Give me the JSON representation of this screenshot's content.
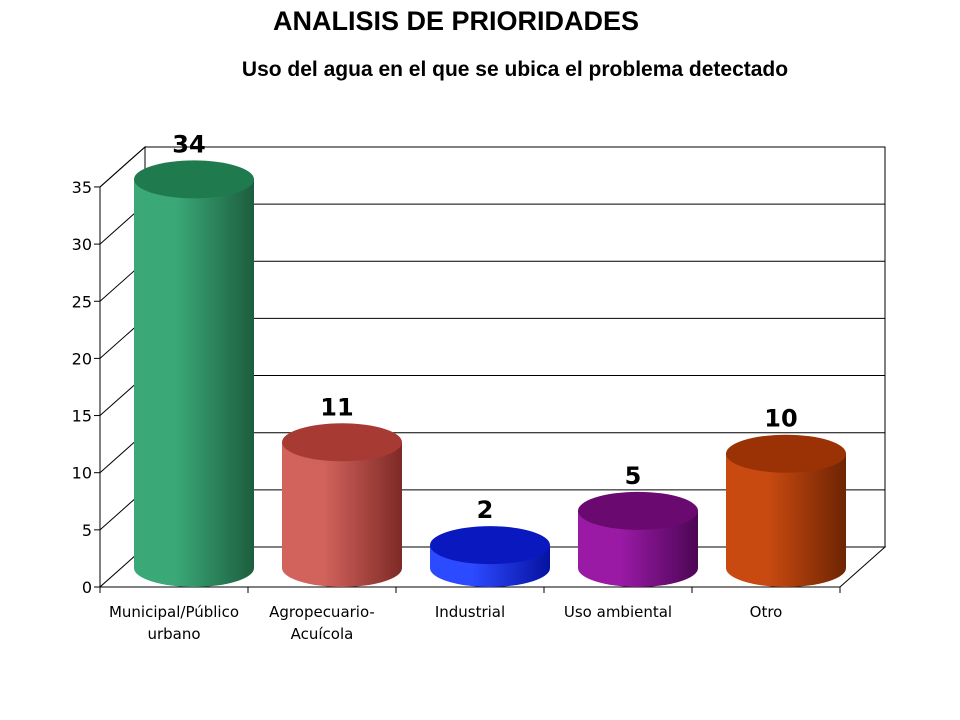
{
  "title": "ANALISIS DE PRIORIDADES",
  "subtitle": "Uso del agua en el que se ubica el problema detectado",
  "chart_data": {
    "type": "bar",
    "style": "3d-cylinder",
    "categories": [
      "Municipal/Público urbano",
      "Agropecuario-Acuícola",
      "Industrial",
      "Uso ambiental",
      "Otro"
    ],
    "category_label_lines": [
      [
        "Municipal/Público",
        "urbano"
      ],
      [
        "Agropecuario-",
        "Acuícola"
      ],
      [
        "Industrial"
      ],
      [
        "Uso ambiental"
      ],
      [
        "Otro"
      ]
    ],
    "values": [
      34,
      11,
      2,
      5,
      10
    ],
    "data_labels": [
      "34",
      "11",
      "2",
      "5",
      "10"
    ],
    "colors": [
      [
        "#1f7a4e",
        "#3aa877",
        "#1c5e3e"
      ],
      [
        "#a83a34",
        "#d2625c",
        "#7e2a26"
      ],
      [
        "#0a18c0",
        "#2c4aff",
        "#0612a0"
      ],
      [
        "#6a0a70",
        "#9a1aa6",
        "#4c0654"
      ],
      [
        "#9a3206",
        "#c84a10",
        "#6e2404"
      ]
    ],
    "ylim": [
      0,
      35
    ],
    "yticks": [
      "0",
      "5",
      "10",
      "15",
      "20",
      "25",
      "30",
      "35"
    ],
    "grid": true,
    "legend": "none",
    "xlabel": "",
    "ylabel": ""
  }
}
